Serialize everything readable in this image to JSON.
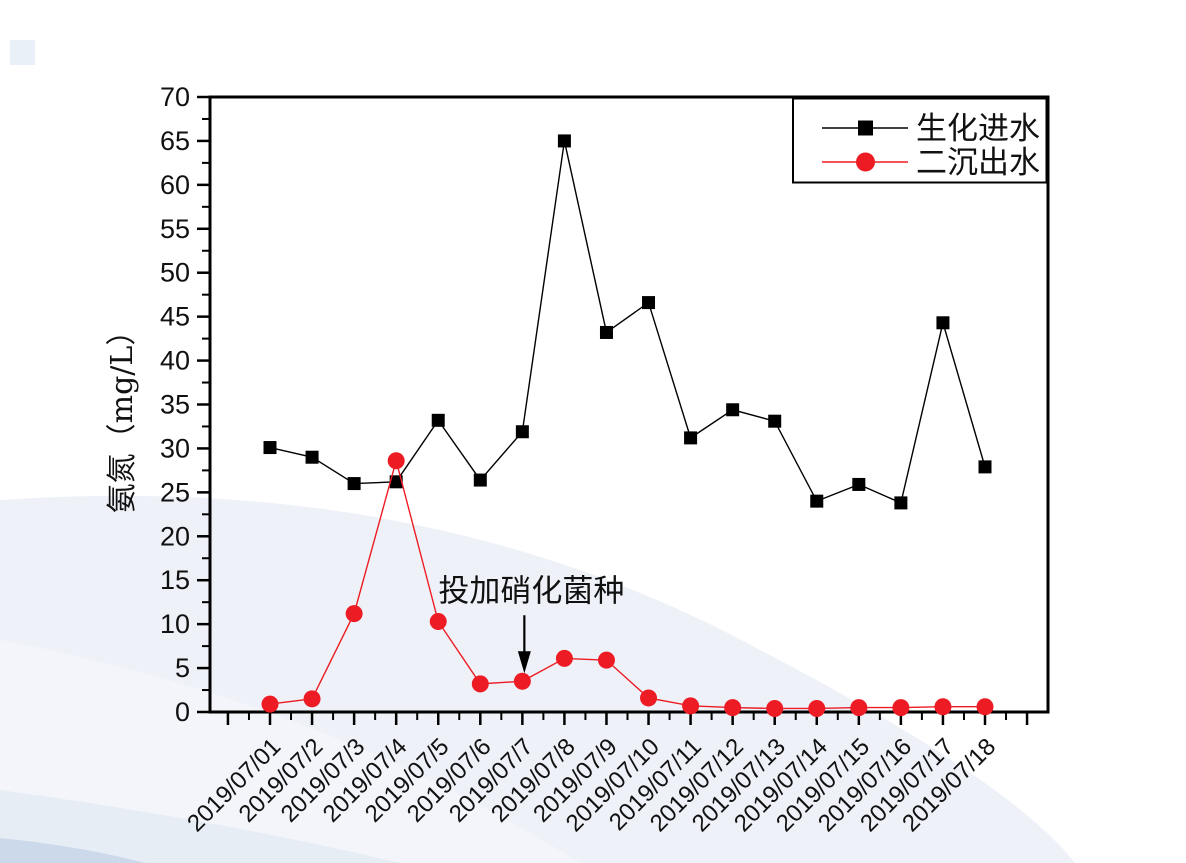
{
  "chart_data": {
    "type": "line",
    "title": "",
    "xlabel": "",
    "ylabel": "氨氮（mg/L）",
    "ylim": [
      0,
      70
    ],
    "y_major_step": 5,
    "y_minor_step": 2.5,
    "y_tick_labels": [
      "0",
      "5",
      "10",
      "15",
      "20",
      "25",
      "30",
      "35",
      "40",
      "45",
      "50",
      "55",
      "60",
      "65",
      "70"
    ],
    "grid": false,
    "legend_position": "top-right-inside",
    "categories": [
      "2019/07/01",
      "2019/07/2",
      "2019/07/3",
      "2019/07/4",
      "2019/07/5",
      "2019/07/6",
      "2019/07/7",
      "2019/07/8",
      "2019/07/9",
      "2019/07/10",
      "2019/07/11",
      "2019/07/12",
      "2019/07/13",
      "2019/07/14",
      "2019/07/15",
      "2019/07/16",
      "2019/07/17",
      "2019/07/18"
    ],
    "series": [
      {
        "name": "生化进水",
        "marker": "square",
        "color": "#000000",
        "values": [
          30.1,
          29.0,
          26.0,
          26.2,
          33.2,
          26.4,
          31.9,
          65.0,
          43.2,
          46.6,
          31.2,
          34.4,
          33.1,
          24.0,
          25.9,
          23.8,
          44.3,
          27.9
        ]
      },
      {
        "name": "二沉出水",
        "marker": "circle",
        "color": "#ed1c24",
        "values": [
          0.9,
          1.5,
          11.2,
          28.6,
          10.3,
          3.2,
          3.5,
          6.1,
          5.9,
          1.6,
          0.7,
          0.5,
          0.4,
          0.4,
          0.5,
          0.5,
          0.6,
          0.6
        ]
      }
    ],
    "annotation": {
      "text": "投加硝化菌种",
      "target_category": "2019/07/7",
      "target_series": "二沉出水",
      "arrow": "down"
    }
  },
  "colors": {
    "axis": "#000000",
    "series_inflow": "#000000",
    "series_outflow": "#ed1c24",
    "legend_border": "#000000"
  }
}
